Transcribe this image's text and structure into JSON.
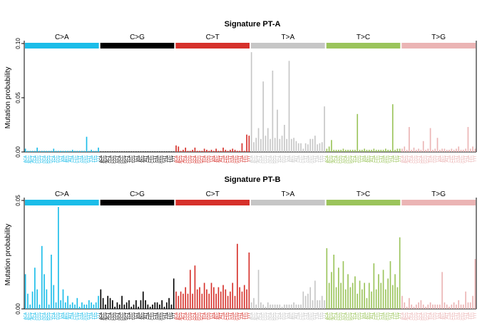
{
  "colors": {
    "C>A": "#1bbde9",
    "C>G": "#000000",
    "C>T": "#d6312b",
    "T>A": "#c6c6c6",
    "T>C": "#9bc45b",
    "T>G": "#ebb4b4"
  },
  "chart_data": [
    {
      "type": "bar",
      "title": "Signature PT-A",
      "ylabel": "Mutation probability",
      "ylim": [
        0,
        0.1
      ],
      "yticks": [
        "0.00",
        "0.05",
        "0.10"
      ],
      "groups": [
        "C>A",
        "C>G",
        "C>T",
        "T>A",
        "T>C",
        "T>G"
      ],
      "categories": [
        "ACA",
        "ACC",
        "ACG",
        "ACT",
        "CCA",
        "CCC",
        "CCG",
        "CCT",
        "GCA",
        "GCC",
        "GCG",
        "GCT",
        "TCA",
        "TCC",
        "TCG",
        "TCT",
        "ATA",
        "ATC",
        "ATG",
        "ATT",
        "CTA",
        "CTC",
        "CTG",
        "CTT",
        "GTA",
        "GTC",
        "GTG",
        "GTT",
        "TTA",
        "TTC",
        "TTG",
        "TTT"
      ],
      "series": [
        {
          "group": "C>A",
          "values": [
            0.003,
            0.001,
            0.001,
            0.001,
            0.001,
            0.004,
            0.001,
            0.001,
            0.001,
            0.001,
            0.001,
            0.001,
            0.003,
            0.001,
            0.001,
            0.001,
            0.001,
            0.001,
            0.001,
            0.001,
            0.002,
            0.001,
            0.001,
            0.001,
            0.001,
            0.001,
            0.014,
            0.001,
            0.002,
            0.001,
            0.001,
            0.004
          ]
        },
        {
          "group": "C>G",
          "values": [
            0.0005,
            0.0005,
            0.0005,
            0.0005,
            0.0005,
            0.0005,
            0.0005,
            0.0005,
            0.0005,
            0.0005,
            0.0005,
            0.0005,
            0.0005,
            0.0005,
            0.0005,
            0.0005,
            0.0005,
            0.0005,
            0.0005,
            0.0005,
            0.0005,
            0.0005,
            0.0005,
            0.0005,
            0.0005,
            0.0005,
            0.0005,
            0.0005,
            0.0005,
            0.0005,
            0.0005,
            0.0005
          ]
        },
        {
          "group": "C>T",
          "values": [
            0.006,
            0.005,
            0.001,
            0.002,
            0.004,
            0.001,
            0.001,
            0.002,
            0.004,
            0.001,
            0.001,
            0.001,
            0.003,
            0.002,
            0.001,
            0.002,
            0.001,
            0.003,
            0.001,
            0.001,
            0.004,
            0.002,
            0.001,
            0.002,
            0.003,
            0.002,
            0.001,
            0.001,
            0.008,
            0.001,
            0.016,
            0.015
          ]
        },
        {
          "group": "T>A",
          "values": [
            0.092,
            0.009,
            0.013,
            0.022,
            0.012,
            0.065,
            0.015,
            0.022,
            0.012,
            0.075,
            0.013,
            0.039,
            0.012,
            0.015,
            0.025,
            0.012,
            0.084,
            0.012,
            0.013,
            0.01,
            0.008,
            0.008,
            0.003,
            0.008,
            0.007,
            0.012,
            0.012,
            0.015,
            0.007,
            0.008,
            0.009,
            0.042
          ]
        },
        {
          "group": "T>C",
          "values": [
            0.003,
            0.005,
            0.011,
            0.002,
            0.002,
            0.002,
            0.002,
            0.003,
            0.002,
            0.002,
            0.002,
            0.002,
            0.002,
            0.035,
            0.002,
            0.002,
            0.003,
            0.002,
            0.002,
            0.002,
            0.003,
            0.002,
            0.002,
            0.002,
            0.002,
            0.003,
            0.002,
            0.002,
            0.044,
            0.002,
            0.003,
            0.003
          ]
        },
        {
          "group": "T>G",
          "values": [
            0.003,
            0.005,
            0.002,
            0.023,
            0.002,
            0.004,
            0.002,
            0.003,
            0.002,
            0.01,
            0.002,
            0.003,
            0.022,
            0.002,
            0.003,
            0.013,
            0.002,
            0.003,
            0.003,
            0.002,
            0.002,
            0.003,
            0.002,
            0.003,
            0.005,
            0.002,
            0.002,
            0.003,
            0.023,
            0.003,
            0.005,
            0.003
          ]
        }
      ]
    },
    {
      "type": "bar",
      "title": "Signature PT-B",
      "ylabel": "Mutation probability",
      "ylim": [
        0,
        0.05
      ],
      "yticks": [
        "0.00",
        "0.05"
      ],
      "groups": [
        "C>A",
        "C>G",
        "C>T",
        "T>A",
        "T>C",
        "T>G"
      ],
      "categories": [
        "ACA",
        "ACC",
        "ACG",
        "ACT",
        "CCA",
        "CCC",
        "CCG",
        "CCT",
        "GCA",
        "GCC",
        "GCG",
        "GCT",
        "TCA",
        "TCC",
        "TCG",
        "TCT",
        "ATA",
        "ATC",
        "ATG",
        "ATT",
        "CTA",
        "CTC",
        "CTG",
        "CTT",
        "GTA",
        "GTC",
        "GTG",
        "GTT",
        "TTA",
        "TTC",
        "TTG",
        "TTT"
      ],
      "series": [
        {
          "group": "C>A",
          "values": [
            0.016,
            0.007,
            0.002,
            0.008,
            0.019,
            0.009,
            0.002,
            0.029,
            0.016,
            0.009,
            0.002,
            0.025,
            0.011,
            0.003,
            0.047,
            0.004,
            0.009,
            0.003,
            0.006,
            0.002,
            0.003,
            0.002,
            0.005,
            0.001,
            0.003,
            0.002,
            0.002,
            0.004,
            0.003,
            0.002,
            0.003,
            0.006
          ]
        },
        {
          "group": "C>G",
          "values": [
            0.009,
            0.005,
            0.002,
            0.006,
            0.005,
            0.004,
            0.001,
            0.003,
            0.002,
            0.006,
            0.002,
            0.003,
            0.004,
            0.001,
            0.002,
            0.004,
            0.001,
            0.004,
            0.008,
            0.004,
            0.002,
            0.001,
            0.002,
            0.003,
            0.003,
            0.002,
            0.004,
            0.001,
            0.003,
            0.005,
            0.002,
            0.014
          ]
        },
        {
          "group": "C>T",
          "values": [
            0.008,
            0.006,
            0.008,
            0.007,
            0.01,
            0.007,
            0.018,
            0.007,
            0.02,
            0.009,
            0.01,
            0.007,
            0.012,
            0.009,
            0.007,
            0.012,
            0.01,
            0.007,
            0.01,
            0.008,
            0.011,
            0.009,
            0.006,
            0.008,
            0.012,
            0.006,
            0.03,
            0.01,
            0.008,
            0.011,
            0.009,
            0.026
          ]
        },
        {
          "group": "T>A",
          "values": [
            0.003,
            0.005,
            0.002,
            0.018,
            0.003,
            0.002,
            0.001,
            0.003,
            0.002,
            0.002,
            0.002,
            0.002,
            0.002,
            0.001,
            0.002,
            0.002,
            0.002,
            0.002,
            0.003,
            0.002,
            0.002,
            0.002,
            0.008,
            0.006,
            0.007,
            0.01,
            0.004,
            0.013,
            0.004,
            0.004,
            0.006,
            0.004
          ]
        },
        {
          "group": "T>C",
          "values": [
            0.028,
            0.012,
            0.017,
            0.025,
            0.01,
            0.019,
            0.012,
            0.022,
            0.009,
            0.016,
            0.01,
            0.012,
            0.015,
            0.007,
            0.013,
            0.009,
            0.012,
            0.005,
            0.012,
            0.008,
            0.021,
            0.009,
            0.016,
            0.012,
            0.018,
            0.009,
            0.014,
            0.022,
            0.011,
            0.016,
            0.01,
            0.033
          ]
        },
        {
          "group": "T>G",
          "values": [
            0.006,
            0.003,
            0.001,
            0.005,
            0.002,
            0.001,
            0.002,
            0.003,
            0.004,
            0.002,
            0.001,
            0.002,
            0.003,
            0.002,
            0.002,
            0.002,
            0.002,
            0.017,
            0.003,
            0.002,
            0.001,
            0.002,
            0.003,
            0.002,
            0.004,
            0.002,
            0.002,
            0.008,
            0.003,
            0.003,
            0.006,
            0.023
          ]
        }
      ]
    }
  ]
}
